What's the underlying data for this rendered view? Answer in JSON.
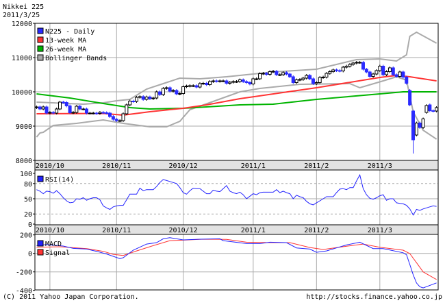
{
  "header": {
    "title": "Nikkei 225",
    "date": "2011/3/25"
  },
  "footer": {
    "copyright": "(C) 2011 Yahoo Japan Corporation.",
    "url": "http://stocks.finance.yahoo.co.jp"
  },
  "colors": {
    "up_body": "#ffffff",
    "down_body": "#2a2aff",
    "ma13": "#ff3333",
    "ma26": "#00b400",
    "bollinger": "#aaaaaa",
    "rsi": "#2222ff",
    "macd": "#2222ff",
    "signal": "#ff3333",
    "date_bar": "#e2e2e2",
    "grid": "#aaaaaa"
  },
  "chart_data": [
    {
      "type": "candlestick",
      "panel": "price",
      "legend": [
        "N225 - Daily",
        "13-week MA",
        "26-week MA",
        "Bollinger Bands"
      ],
      "legend_placement": "top-left",
      "ylim": [
        8000,
        12000
      ],
      "yticks": [
        8000,
        9000,
        10000,
        11000,
        12000
      ],
      "grid": true,
      "month_ticks": [
        {
          "label": "2010/10",
          "date": "2010/10/01"
        },
        {
          "label": "2010/11",
          "date": "2010/11/01"
        },
        {
          "label": "2010/12",
          "date": "2010/12/01"
        },
        {
          "label": "2011/1",
          "date": "2011/01/04"
        },
        {
          "label": "2011/2",
          "date": "2011/02/01"
        },
        {
          "label": "2011/3",
          "date": "2011/03/01"
        }
      ],
      "dates": [
        "2010/09/27",
        "2010/09/28",
        "2010/09/29",
        "2010/09/30",
        "2010/10/01",
        "2010/10/04",
        "2010/10/05",
        "2010/10/06",
        "2010/10/07",
        "2010/10/08",
        "2010/10/12",
        "2010/10/13",
        "2010/10/14",
        "2010/10/15",
        "2010/10/18",
        "2010/10/19",
        "2010/10/20",
        "2010/10/21",
        "2010/10/22",
        "2010/10/25",
        "2010/10/26",
        "2010/10/27",
        "2010/10/28",
        "2010/10/29",
        "2010/11/01",
        "2010/11/02",
        "2010/11/04",
        "2010/11/05",
        "2010/11/08",
        "2010/11/09",
        "2010/11/10",
        "2010/11/11",
        "2010/11/12",
        "2010/11/15",
        "2010/11/16",
        "2010/11/17",
        "2010/11/18",
        "2010/11/19",
        "2010/11/22",
        "2010/11/24",
        "2010/11/25",
        "2010/11/26",
        "2010/11/29",
        "2010/11/30",
        "2010/12/01",
        "2010/12/02",
        "2010/12/03",
        "2010/12/06",
        "2010/12/07",
        "2010/12/08",
        "2010/12/09",
        "2010/12/10",
        "2010/12/13",
        "2010/12/14",
        "2010/12/15",
        "2010/12/16",
        "2010/12/17",
        "2010/12/20",
        "2010/12/21",
        "2010/12/22",
        "2010/12/24",
        "2010/12/27",
        "2010/12/28",
        "2010/12/29",
        "2010/12/30",
        "2011/01/04",
        "2011/01/05",
        "2011/01/06",
        "2011/01/07",
        "2011/01/11",
        "2011/01/12",
        "2011/01/13",
        "2011/01/14",
        "2011/01/17",
        "2011/01/18",
        "2011/01/19",
        "2011/01/20",
        "2011/01/21",
        "2011/01/24",
        "2011/01/25",
        "2011/01/26",
        "2011/01/27",
        "2011/01/28",
        "2011/01/31",
        "2011/02/01",
        "2011/02/02",
        "2011/02/03",
        "2011/02/04",
        "2011/02/07",
        "2011/02/08",
        "2011/02/09",
        "2011/02/10",
        "2011/02/14",
        "2011/02/15",
        "2011/02/16",
        "2011/02/17",
        "2011/02/18",
        "2011/02/21",
        "2011/02/22",
        "2011/02/23",
        "2011/02/24",
        "2011/02/25",
        "2011/02/28",
        "2011/03/01",
        "2011/03/02",
        "2011/03/03",
        "2011/03/04",
        "2011/03/07",
        "2011/03/08",
        "2011/03/09",
        "2011/03/10",
        "2011/03/11",
        "2011/03/14",
        "2011/03/15",
        "2011/03/16",
        "2011/03/17",
        "2011/03/18",
        "2011/03/22",
        "2011/03/23",
        "2011/03/24",
        "2011/03/25"
      ],
      "open": [
        9540,
        9560,
        9500,
        9560,
        9380,
        9400,
        9380,
        9500,
        9700,
        9690,
        9590,
        9390,
        9400,
        9580,
        9500,
        9500,
        9380,
        9380,
        9380,
        9370,
        9400,
        9390,
        9380,
        9280,
        9200,
        9160,
        9160,
        9360,
        9620,
        9730,
        9720,
        9840,
        9860,
        9780,
        9850,
        9800,
        9820,
        10000,
        9920,
        10100,
        10120,
        10020,
        10040,
        9940,
        9950,
        10150,
        10170,
        10180,
        10180,
        10140,
        10240,
        10250,
        10210,
        10300,
        10320,
        10310,
        10320,
        10320,
        10250,
        10280,
        10300,
        10300,
        10350,
        10300,
        10270,
        10230,
        10380,
        10380,
        10530,
        10540,
        10510,
        10590,
        10600,
        10500,
        10500,
        10560,
        10520,
        10440,
        10270,
        10350,
        10360,
        10400,
        10480,
        10380,
        10240,
        10270,
        10420,
        10430,
        10540,
        10590,
        10640,
        10620,
        10610,
        10720,
        10750,
        10800,
        10840,
        10860,
        10860,
        10660,
        10580,
        10450,
        10520,
        10620,
        10750,
        10500,
        10590,
        10700,
        10500,
        10450,
        10580,
        10430,
        10040,
        9440,
        8740,
        9090,
        8960,
        9400,
        9620,
        9450,
        9440
      ],
      "close": [
        9560,
        9500,
        9560,
        9380,
        9400,
        9380,
        9500,
        9700,
        9690,
        9590,
        9390,
        9400,
        9580,
        9500,
        9500,
        9380,
        9380,
        9380,
        9370,
        9400,
        9390,
        9380,
        9280,
        9200,
        9160,
        9160,
        9360,
        9620,
        9730,
        9720,
        9840,
        9860,
        9780,
        9850,
        9800,
        9820,
        10000,
        9920,
        10100,
        10120,
        10020,
        10040,
        9940,
        9950,
        10150,
        10170,
        10180,
        10180,
        10140,
        10240,
        10250,
        10210,
        10300,
        10320,
        10310,
        10320,
        10320,
        10250,
        10280,
        10300,
        10300,
        10350,
        10300,
        10270,
        10230,
        10380,
        10380,
        10530,
        10540,
        10510,
        10590,
        10600,
        10500,
        10500,
        10560,
        10520,
        10440,
        10270,
        10350,
        10360,
        10400,
        10480,
        10380,
        10240,
        10270,
        10420,
        10430,
        10540,
        10590,
        10640,
        10620,
        10610,
        10720,
        10750,
        10800,
        10840,
        10860,
        10860,
        10660,
        10580,
        10450,
        10520,
        10620,
        10750,
        10500,
        10590,
        10700,
        10500,
        10450,
        10580,
        10430,
        10250,
        9620,
        8600,
        9090,
        8960,
        9210,
        9600,
        9450,
        9440,
        9540
      ],
      "lows": {
        "2011/03/15": 8200
      },
      "ma13": [
        [
          "2010/09/27",
          9360
        ],
        [
          "2010/10/26",
          9370
        ],
        [
          "2010/11/04",
          9320
        ],
        [
          "2010/11/16",
          9420
        ],
        [
          "2010/12/01",
          9520
        ],
        [
          "2010/12/10",
          9620
        ],
        [
          "2010/12/27",
          9800
        ],
        [
          "2011/02/01",
          10120
        ],
        [
          "2011/03/01",
          10420
        ],
        [
          "2011/03/08",
          10480
        ],
        [
          "2011/03/14",
          10440
        ],
        [
          "2011/03/25",
          10320
        ]
      ],
      "ma26": [
        [
          "2010/09/27",
          9940
        ],
        [
          "2010/10/12",
          9820
        ],
        [
          "2010/10/26",
          9660
        ],
        [
          "2010/11/08",
          9540
        ],
        [
          "2010/11/16",
          9500
        ],
        [
          "2010/12/01",
          9520
        ],
        [
          "2010/12/10",
          9560
        ],
        [
          "2010/12/27",
          9620
        ],
        [
          "2011/01/13",
          9640
        ],
        [
          "2011/02/01",
          9780
        ],
        [
          "2011/03/01",
          9940
        ],
        [
          "2011/03/10",
          10000
        ],
        [
          "2011/03/25",
          10000
        ]
      ],
      "bollinger_upper": [
        [
          "2010/09/27",
          9700
        ],
        [
          "2010/10/18",
          9640
        ],
        [
          "2010/10/26",
          9680
        ],
        [
          "2010/11/01",
          9740
        ],
        [
          "2010/11/08",
          9780
        ],
        [
          "2010/11/15",
          10080
        ],
        [
          "2010/11/22",
          10240
        ],
        [
          "2010/11/30",
          10400
        ],
        [
          "2010/12/08",
          10380
        ],
        [
          "2010/12/20",
          10440
        ],
        [
          "2010/12/27",
          10480
        ],
        [
          "2011/01/13",
          10580
        ],
        [
          "2011/02/01",
          10660
        ],
        [
          "2011/02/18",
          10940
        ],
        [
          "2011/03/01",
          10960
        ],
        [
          "2011/03/08",
          10900
        ],
        [
          "2011/03/11",
          11080
        ],
        [
          "2011/03/14",
          11620
        ],
        [
          "2011/03/16",
          11740
        ],
        [
          "2011/03/25",
          11420
        ]
      ],
      "bollinger_lower": [
        [
          "2010/09/27",
          8680
        ],
        [
          "2010/09/28",
          8800
        ],
        [
          "2010/09/29",
          8820
        ],
        [
          "2010/10/04",
          9020
        ],
        [
          "2010/10/14",
          9080
        ],
        [
          "2010/10/26",
          9180
        ],
        [
          "2010/11/04",
          9080
        ],
        [
          "2010/11/16",
          8980
        ],
        [
          "2010/11/24",
          8980
        ],
        [
          "2010/11/30",
          9140
        ],
        [
          "2010/12/03",
          9480
        ],
        [
          "2010/12/14",
          9720
        ],
        [
          "2010/12/27",
          10000
        ],
        [
          "2011/01/06",
          10100
        ],
        [
          "2011/01/25",
          10220
        ],
        [
          "2011/02/16",
          10240
        ],
        [
          "2011/02/21",
          10120
        ],
        [
          "2011/03/02",
          10320
        ],
        [
          "2011/03/08",
          10440
        ],
        [
          "2011/03/11",
          10340
        ],
        [
          "2011/03/15",
          9420
        ],
        [
          "2011/03/18",
          8880
        ],
        [
          "2011/03/25",
          8620
        ]
      ]
    },
    {
      "type": "line",
      "panel": "rsi",
      "legend": [
        "RSI(14)"
      ],
      "ylim": [
        0,
        100
      ],
      "yticks": [
        0,
        20,
        50,
        80,
        100
      ],
      "dashed_levels": [
        20,
        80
      ],
      "values": [
        68,
        65,
        60,
        65,
        64,
        61,
        66,
        60,
        52,
        46,
        42,
        43,
        50,
        49,
        52,
        47,
        50,
        52,
        52,
        48,
        36,
        32,
        29,
        34,
        36,
        37,
        37,
        48,
        59,
        59,
        59,
        71,
        66,
        68,
        68,
        68,
        74,
        82,
        88,
        86,
        84,
        82,
        80,
        72,
        62,
        59,
        66,
        71,
        70,
        70,
        65,
        60,
        60,
        67,
        65,
        64,
        70,
        76,
        65,
        62,
        60,
        63,
        58,
        50,
        55,
        60,
        58,
        62,
        63,
        63,
        63,
        63,
        68,
        62,
        65,
        62,
        60,
        50,
        57,
        54,
        52,
        45,
        40,
        38,
        42,
        46,
        50,
        54,
        54,
        54,
        62,
        69,
        70,
        68,
        72,
        72,
        85,
        97,
        70,
        58,
        51,
        49,
        52,
        56,
        58,
        47,
        50,
        50,
        42,
        41,
        40,
        37,
        30,
        18,
        29,
        27,
        30,
        32,
        34,
        36,
        35
      ]
    },
    {
      "type": "line",
      "panel": "macd",
      "legend": [
        "MACD",
        "Signal"
      ],
      "ylim": [
        -400,
        200
      ],
      "yticks": [
        -400,
        -200,
        0,
        200
      ],
      "macd": [
        [
          "2010/09/27",
          84
        ],
        [
          "2010/09/30",
          96
        ],
        [
          "2010/10/07",
          79
        ],
        [
          "2010/10/13",
          54
        ],
        [
          "2010/10/19",
          47
        ],
        [
          "2010/10/22",
          22
        ],
        [
          "2010/10/27",
          -7
        ],
        [
          "2010/11/02",
          -57
        ],
        [
          "2010/11/04",
          -47
        ],
        [
          "2010/11/09",
          35
        ],
        [
          "2010/11/15",
          101
        ],
        [
          "2010/11/18",
          116
        ],
        [
          "2010/11/22",
          158
        ],
        [
          "2010/11/25",
          170
        ],
        [
          "2010/12/01",
          146
        ],
        [
          "2010/12/08",
          153
        ],
        [
          "2010/12/16",
          158
        ],
        [
          "2010/12/17",
          138
        ],
        [
          "2010/12/29",
          106
        ],
        [
          "2011/01/06",
          106
        ],
        [
          "2011/01/12",
          121
        ],
        [
          "2011/01/19",
          116
        ],
        [
          "2011/01/24",
          59
        ],
        [
          "2011/01/28",
          47
        ],
        [
          "2011/02/01",
          12
        ],
        [
          "2011/02/04",
          27
        ],
        [
          "2011/02/09",
          59
        ],
        [
          "2011/02/15",
          91
        ],
        [
          "2011/02/21",
          121
        ],
        [
          "2011/02/25",
          52
        ],
        [
          "2011/03/02",
          52
        ],
        [
          "2011/03/10",
          7
        ],
        [
          "2011/03/11",
          -15
        ],
        [
          "2011/03/14",
          -120
        ],
        [
          "2011/03/15",
          -230
        ],
        [
          "2011/03/16",
          -320
        ],
        [
          "2011/03/17",
          -360
        ],
        [
          "2011/03/18",
          -373
        ],
        [
          "2011/03/25",
          -319
        ]
      ],
      "signal": [
        [
          "2010/09/27",
          67
        ],
        [
          "2010/10/06",
          72
        ],
        [
          "2010/10/19",
          52
        ],
        [
          "2010/10/26",
          22
        ],
        [
          "2010/10/29",
          -10
        ],
        [
          "2010/11/04",
          -22
        ],
        [
          "2010/11/10",
          27
        ],
        [
          "2010/11/17",
          84
        ],
        [
          "2010/11/25",
          138
        ],
        [
          "2010/12/01",
          143
        ],
        [
          "2010/12/09",
          153
        ],
        [
          "2010/12/20",
          151
        ],
        [
          "2010/12/29",
          121
        ],
        [
          "2011/01/12",
          116
        ],
        [
          "2011/01/20",
          116
        ],
        [
          "2011/01/28",
          64
        ],
        [
          "2011/02/03",
          42
        ],
        [
          "2011/02/15",
          77
        ],
        [
          "2011/02/22",
          101
        ],
        [
          "2011/03/01",
          67
        ],
        [
          "2011/03/10",
          35
        ],
        [
          "2011/03/14",
          -2
        ],
        [
          "2011/03/16",
          -101
        ],
        [
          "2011/03/18",
          -200
        ],
        [
          "2011/03/25",
          -282
        ]
      ]
    }
  ]
}
